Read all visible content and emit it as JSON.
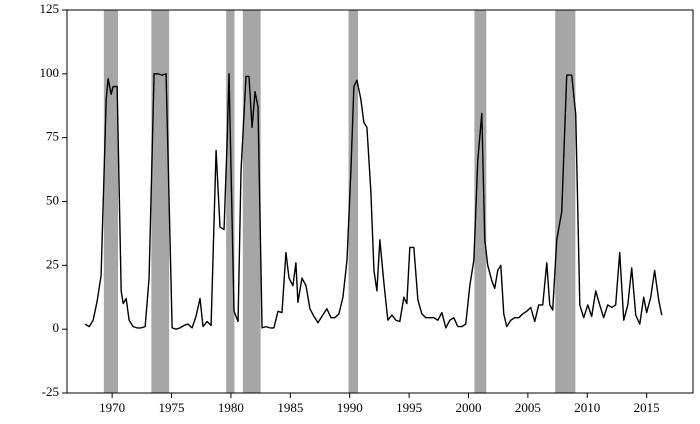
{
  "chart_data": {
    "type": "line",
    "xlim": [
      1966.2,
      2018.9
    ],
    "ylim": [
      -25,
      125
    ],
    "yticks": [
      -25,
      0,
      25,
      50,
      75,
      100,
      125
    ],
    "xticks": [
      1970,
      1975,
      1980,
      1985,
      1990,
      1995,
      2000,
      2005,
      2010,
      2015
    ],
    "shaded_regions": [
      [
        1969.3,
        1970.5
      ],
      [
        1973.3,
        1974.8
      ],
      [
        1979.6,
        1980.3
      ],
      [
        1981.0,
        1982.5
      ],
      [
        1989.9,
        1990.7
      ],
      [
        2000.5,
        2001.5
      ],
      [
        2007.3,
        2009.0
      ]
    ],
    "shade_color": "#a6a6a6",
    "series": [
      {
        "color": "#000000",
        "x": [
          1967.73,
          1968.07,
          1968.4,
          1968.74,
          1969.07,
          1969.5,
          1969.66,
          1969.92,
          1970.08,
          1970.42,
          1970.76,
          1970.93,
          1971.18,
          1971.43,
          1971.77,
          1972.1,
          1972.44,
          1972.78,
          1973.11,
          1973.53,
          1973.87,
          1974.2,
          1974.54,
          1975.05,
          1975.38,
          1975.72,
          1976.06,
          1976.39,
          1976.73,
          1977.06,
          1977.4,
          1977.65,
          1977.99,
          1978.33,
          1978.75,
          1979.08,
          1979.42,
          1979.67,
          1979.84,
          1980.26,
          1980.6,
          1980.85,
          1981.27,
          1981.52,
          1981.78,
          1982.03,
          1982.28,
          1982.62,
          1982.95,
          1983.29,
          1983.62,
          1983.96,
          1984.3,
          1984.63,
          1984.89,
          1985.22,
          1985.47,
          1985.64,
          1985.98,
          1986.32,
          1986.65,
          1986.99,
          1987.33,
          1987.66,
          1988.08,
          1988.42,
          1988.76,
          1989.09,
          1989.43,
          1989.77,
          1990.1,
          1990.35,
          1990.61,
          1990.94,
          1991.19,
          1991.45,
          1991.78,
          1992.04,
          1992.29,
          1992.54,
          1992.88,
          1993.21,
          1993.55,
          1993.89,
          1994.22,
          1994.56,
          1994.81,
          1995.06,
          1995.4,
          1995.74,
          1996.07,
          1996.41,
          1996.75,
          1997.08,
          1997.42,
          1997.76,
          1998.09,
          1998.43,
          1998.76,
          1999.1,
          1999.44,
          1999.77,
          2000.11,
          2000.45,
          2000.78,
          2001.12,
          2001.37,
          2001.62,
          2001.96,
          2002.21,
          2002.46,
          2002.72,
          2002.97,
          2003.22,
          2003.56,
          2003.9,
          2004.23,
          2004.57,
          2004.9,
          2005.24,
          2005.58,
          2005.91,
          2006.25,
          2006.59,
          2006.84,
          2007.09,
          2007.43,
          2007.85,
          2008.27,
          2008.69,
          2009.03,
          2009.37,
          2009.7,
          2010.04,
          2010.37,
          2010.71,
          2011.05,
          2011.38,
          2011.72,
          2012.06,
          2012.39,
          2012.73,
          2013.07,
          2013.41,
          2013.74,
          2014.08,
          2014.42,
          2014.75,
          2015.0,
          2015.34,
          2015.67,
          2016.01,
          2016.27
        ],
        "values": [
          2,
          1,
          3.5,
          11,
          21,
          90,
          98,
          92,
          95,
          95,
          15,
          10,
          12,
          3.5,
          1,
          0.5,
          0.5,
          1,
          20,
          100,
          100,
          99.5,
          100,
          0.5,
          0,
          0.5,
          1.5,
          2,
          0.5,
          5,
          12,
          1,
          3,
          1.5,
          70,
          40,
          39,
          72,
          100,
          7,
          3,
          62,
          99,
          99,
          79,
          93,
          87,
          0.5,
          1,
          0.5,
          0.5,
          7,
          6.5,
          30,
          20,
          17,
          26,
          10.5,
          20,
          17,
          8,
          5,
          2.5,
          5,
          8,
          4.5,
          4.5,
          6,
          12.5,
          27,
          62,
          95,
          97.5,
          90,
          81,
          79,
          54,
          23,
          15,
          35,
          18,
          3.5,
          5.5,
          3.5,
          3,
          12.5,
          10,
          32,
          32,
          11.5,
          6,
          4.5,
          4.5,
          4.5,
          3.5,
          6.5,
          0.5,
          3.5,
          4.5,
          1,
          1,
          2,
          17,
          27,
          66,
          84.5,
          35,
          25,
          19,
          16,
          23,
          25,
          6,
          1,
          3.5,
          4.5,
          4.5,
          6,
          7,
          8.5,
          3,
          9.5,
          9.5,
          26,
          9.5,
          7.5,
          35,
          46,
          99.5,
          99.5,
          84,
          9.5,
          4.5,
          9.5,
          5,
          15,
          9.5,
          4.5,
          9.5,
          8.5,
          9.5,
          30,
          3.5,
          9.5,
          24,
          5.5,
          2,
          12.5,
          6.5,
          12.5,
          23,
          11.5,
          5.5
        ]
      }
    ]
  }
}
